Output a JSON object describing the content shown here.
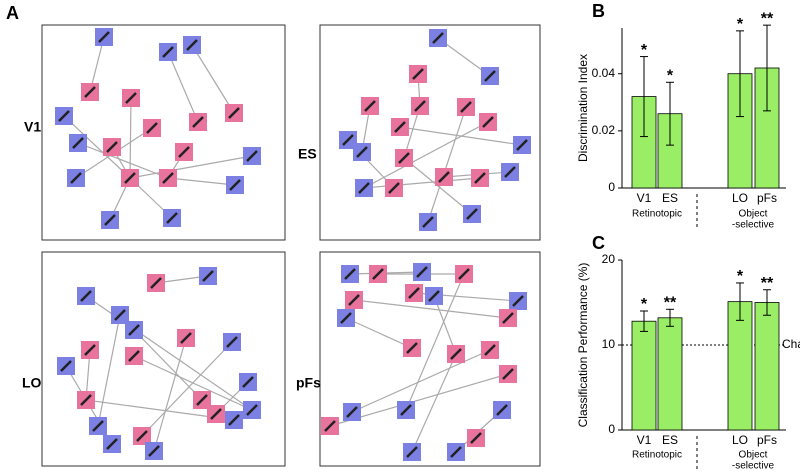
{
  "panel_a": {
    "label": "A",
    "plots": [
      {
        "label": "V1"
      },
      {
        "label": "ES"
      },
      {
        "label": "LO"
      },
      {
        "label": "pFs"
      }
    ]
  },
  "chart_data": [
    {
      "type": "bar",
      "panel": "B",
      "y_label": "Discrimination Index",
      "categories": [
        "V1",
        "ES",
        "LO",
        "pFs"
      ],
      "values": [
        0.032,
        0.026,
        0.04,
        0.042
      ],
      "errors": [
        0.014,
        0.011,
        0.015,
        0.015
      ],
      "significance": [
        "*",
        "*",
        "*",
        "**"
      ],
      "groups": [
        {
          "lines": [
            "Retinotopic"
          ]
        },
        {
          "lines": [
            "Object",
            "-selective"
          ]
        }
      ],
      "color": "#99ee66",
      "ylim": [
        0,
        0.056
      ],
      "yticks": [
        0,
        0.02,
        0.04
      ]
    },
    {
      "type": "bar",
      "panel": "C",
      "y_label": "Classification Performance (%)",
      "categories": [
        "V1",
        "ES",
        "LO",
        "pFs"
      ],
      "values": [
        12.8,
        13.2,
        15.1,
        15.0
      ],
      "errors": [
        1.2,
        1.0,
        2.2,
        1.5
      ],
      "significance": [
        "*",
        "**",
        "*",
        "**"
      ],
      "groups": [
        {
          "lines": [
            "Retinotopic"
          ]
        },
        {
          "lines": [
            "Object",
            "-selective"
          ]
        }
      ],
      "reference_line": {
        "value": 10,
        "label": "Chance"
      },
      "color": "#99ee66",
      "ylim": [
        0,
        20
      ],
      "yticks": [
        0,
        10,
        20
      ]
    }
  ]
}
